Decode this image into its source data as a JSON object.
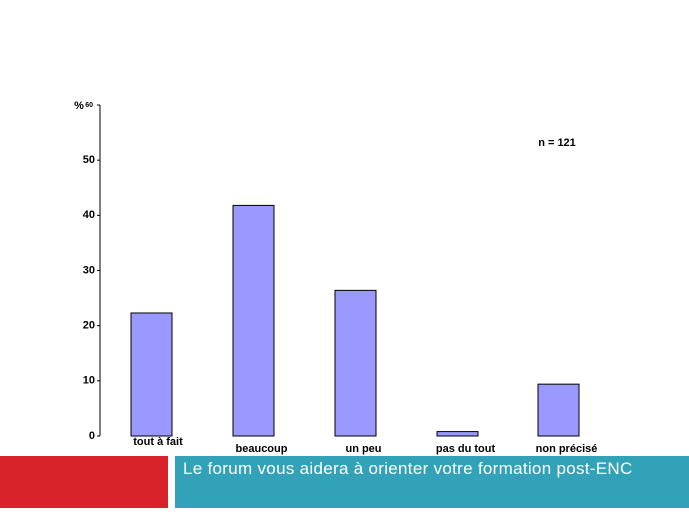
{
  "chart_data": {
    "type": "bar",
    "y_label": "%",
    "annotation": "n = 121",
    "categories": [
      "tout à fait",
      "beaucoup",
      "un peu",
      "pas du tout",
      "non précisé"
    ],
    "values": [
      22.3,
      41.8,
      26.4,
      0.8,
      9.4
    ],
    "color": "#9999ff",
    "ylim": [
      0,
      60
    ],
    "yticks": [
      0,
      10,
      20,
      30,
      40,
      50,
      60
    ],
    "grid": false
  },
  "footer": {
    "caption": "Le forum vous aidera à orienter votre formation post-ENC"
  }
}
